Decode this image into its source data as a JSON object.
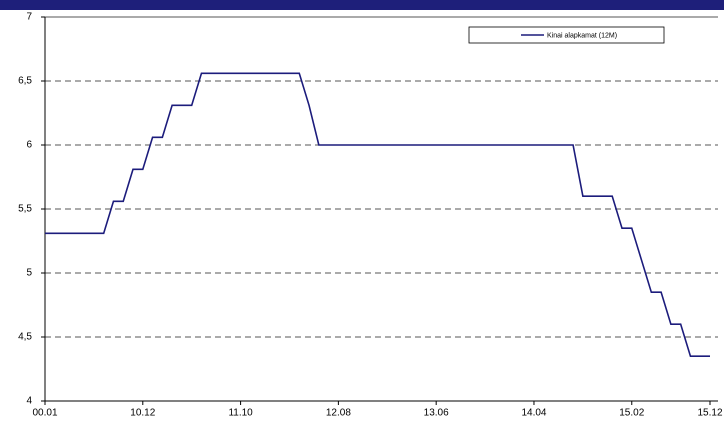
{
  "chart_data": {
    "type": "line",
    "categories": [
      "00.01",
      null,
      null,
      null,
      null,
      null,
      null,
      null,
      null,
      null,
      "10.12",
      null,
      null,
      null,
      null,
      null,
      null,
      null,
      null,
      null,
      "11.10",
      null,
      null,
      null,
      null,
      null,
      null,
      null,
      null,
      null,
      "12.08",
      null,
      null,
      null,
      null,
      null,
      null,
      null,
      null,
      null,
      "13.06",
      null,
      null,
      null,
      null,
      null,
      null,
      null,
      null,
      null,
      "14.04",
      null,
      null,
      null,
      null,
      null,
      null,
      null,
      null,
      null,
      "15.02",
      null,
      null,
      null,
      null,
      null,
      null,
      null,
      "15.12"
    ],
    "series": [
      {
        "name": "Kinai alapkamat (12M)",
        "color": "#1c1c7c",
        "values": [
          5.31,
          5.31,
          5.31,
          5.31,
          5.31,
          5.31,
          5.31,
          5.56,
          5.56,
          5.81,
          5.81,
          6.06,
          6.06,
          6.31,
          6.31,
          6.31,
          6.56,
          6.56,
          6.56,
          6.56,
          6.56,
          6.56,
          6.56,
          6.56,
          6.56,
          6.56,
          6.56,
          6.31,
          6.0,
          6.0,
          6.0,
          6.0,
          6.0,
          6.0,
          6.0,
          6.0,
          6.0,
          6.0,
          6.0,
          6.0,
          6.0,
          6.0,
          6.0,
          6.0,
          6.0,
          6.0,
          6.0,
          6.0,
          6.0,
          6.0,
          6.0,
          6.0,
          6.0,
          6.0,
          6.0,
          5.6,
          5.6,
          5.6,
          5.6,
          5.35,
          5.35,
          5.1,
          4.85,
          4.85,
          4.6,
          4.6,
          4.35,
          4.35,
          4.35
        ]
      }
    ],
    "ylim": [
      4,
      7
    ],
    "yticks": [
      4,
      {
        "value": 4.5,
        "label": "4,5"
      },
      5,
      {
        "value": 5.5,
        "label": "5,5"
      },
      6,
      {
        "value": 6.5,
        "label": "6,5"
      },
      7
    ],
    "grid": true,
    "legend": "top-right"
  }
}
